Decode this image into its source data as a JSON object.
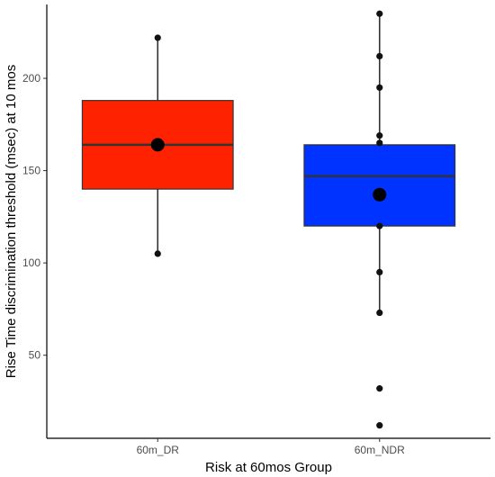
{
  "chart_data": {
    "type": "box",
    "title": "",
    "xlabel": "Risk at 60mos Group",
    "ylabel": "Rise Time discrimination threshold (msec) at 10 mos",
    "ylim": [
      5,
      240
    ],
    "yticks": [
      50,
      100,
      150,
      200
    ],
    "grid": false,
    "legend": "none",
    "categories": [
      "60m_DR",
      "60m_NDR"
    ],
    "boxes": [
      {
        "category": "60m_DR",
        "color": "#ff2200",
        "whisker_low": 105,
        "q1": 140,
        "median": 164,
        "q3": 188,
        "whisker_high": 222,
        "mean": 164,
        "points": [
          105,
          222
        ]
      },
      {
        "category": "60m_NDR",
        "color": "#0033ff",
        "whisker_low": 73,
        "q1": 120,
        "median": 147,
        "q3": 164,
        "whisker_high": 235,
        "mean": 137,
        "points": [
          12,
          32,
          73,
          95,
          120,
          165,
          169,
          195,
          212,
          235
        ]
      }
    ]
  }
}
